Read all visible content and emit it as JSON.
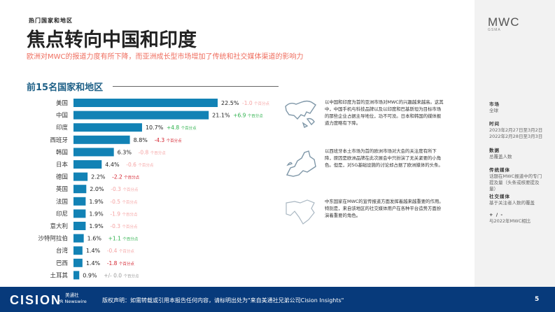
{
  "header": {
    "kicker": "热门国家和地区",
    "title": "焦点转向中国和印度",
    "subtitle": "欧洲对MWC的报道力度有所下降，而亚洲成长型市场增加了传统和社交媒体渠道的影响力"
  },
  "brand": {
    "logo": "MWC",
    "logo_sub": "GSMA"
  },
  "chart_data": {
    "type": "bar",
    "orientation": "horizontal",
    "title": "前15名国家和地区",
    "categories": [
      "美国",
      "中国",
      "印度",
      "西班牙",
      "韩国",
      "日本",
      "德国",
      "英国",
      "法国",
      "印尼",
      "意大利",
      "沙特阿拉伯",
      "台湾",
      "巴西",
      "土耳其"
    ],
    "values": [
      22.5,
      21.1,
      10.7,
      8.8,
      6.3,
      4.4,
      2.2,
      2.0,
      1.9,
      1.9,
      1.9,
      1.6,
      1.4,
      1.4,
      0.9
    ],
    "value_labels": [
      "22.5%",
      "21.1%",
      "10.7%",
      "8.8%",
      "6.3%",
      "4.4%",
      "2.2%",
      "2.0%",
      "1.9%",
      "1.9%",
      "1.9%",
      "1.6%",
      "1.4%",
      "1.4%",
      "0.9%"
    ],
    "changes": [
      "-1.0",
      "+6.9",
      "+4.8",
      "-4.3",
      "-0.8",
      "-0.6",
      "-2.2",
      "-0.3",
      "-0.5",
      "-1.9",
      "-0.3",
      "+1.1",
      "-0.4",
      "-1.8",
      "+/- 0.0"
    ],
    "change_unit": "个百分点",
    "bar_color": "#1282b5",
    "change_colors": {
      "strong_negative": "#d4202c",
      "negative": "#f5a3a3",
      "positive": "#2bb04a",
      "neutral": "#9a9a9a"
    }
  },
  "notes": [
    "以中国和印度为首的亚洲市场对MWC的兴趣越来越高。这其中，中国手机与科技品牌以及以印度和巴基斯坦为目标市场的那些企业占据主导地位，功不可没。日本和韩国的媒体报道力度略有下降。",
    "以西班牙本土市场为首的欧洲市场对大会的关注度有所下降，原因是欧洲品牌在此次展会中只扮演了无关紧要的小角色。但是，对5G基础设施的讨论却占据了欧洲媒体的头条。",
    "中东国家在MWC的宣传报道方面发挥着越来越重要的作用。特别是，来自该地区的社交媒体用户在各种平台造势方面扮演着重要的角色。"
  ],
  "meta": [
    {
      "label": "市场",
      "value": "全球"
    },
    {
      "label": "时间",
      "value": "2023年2月27日至3月2日\n2022年2月28日至3月3日"
    },
    {
      "label": "数据",
      "value": "总覆盖人数"
    },
    {
      "label": "传统媒体",
      "value": "话题在MWC报道中的专门提及量（头条或核要提及量）"
    },
    {
      "label": "社交媒体",
      "value": "基于关注者人数的覆盖"
    },
    {
      "label": "+ / -",
      "value": "与2022年MWC相比"
    }
  ],
  "footer": {
    "cision": "CISION",
    "prn_cn": "美通社",
    "prn": "PR Newswire",
    "copyright": "版权声明：如需转载或引用本报告任何内容，请标明出处为\"来自美通社兄弟公司Cision Insights\"",
    "page": "5"
  }
}
